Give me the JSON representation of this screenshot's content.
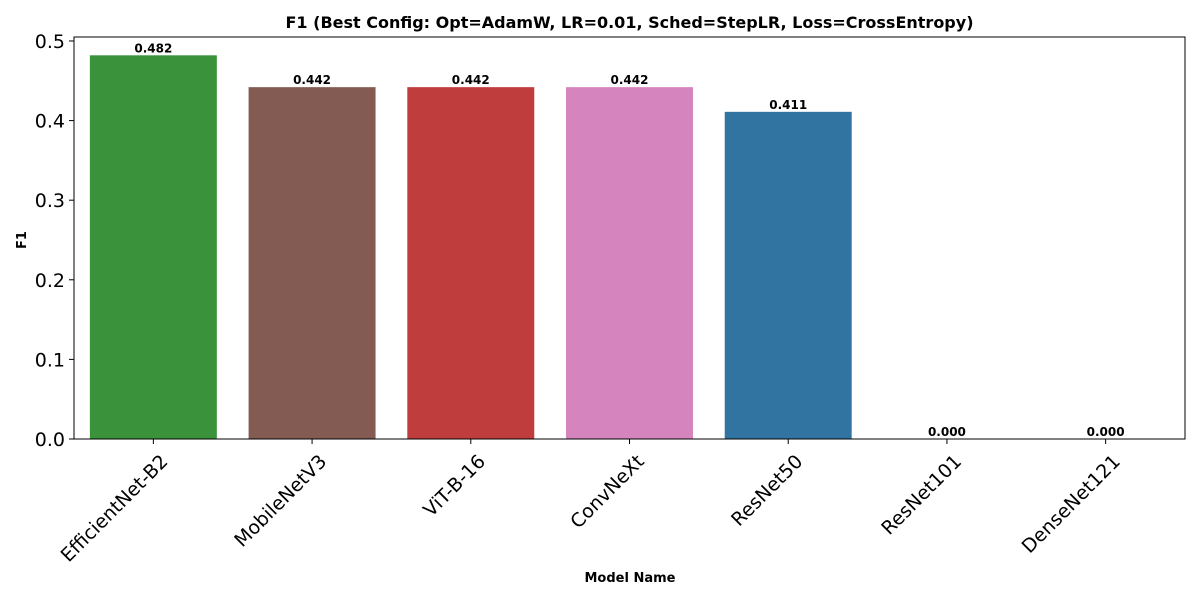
{
  "chart_data": {
    "type": "bar",
    "title": "F1 (Best Config: Opt=AdamW, LR=0.01, Sched=StepLR, Loss=CrossEntropy)",
    "xlabel": "Model Name",
    "ylabel": "F1",
    "categories": [
      "EfficientNet-B2",
      "MobileNetV3",
      "ViT-B-16",
      "ConvNeXt",
      "ResNet50",
      "ResNet101",
      "DenseNet121"
    ],
    "values": [
      0.482,
      0.442,
      0.442,
      0.442,
      0.411,
      0.0,
      0.0
    ],
    "value_labels": [
      "0.482",
      "0.442",
      "0.442",
      "0.442",
      "0.411",
      "0.000",
      "0.000"
    ],
    "colors": [
      "#3a923a",
      "#845b53",
      "#c03d3e",
      "#d684bd",
      "#3274a1",
      "#7f7f7f",
      "#8c8c8c"
    ],
    "ylim": [
      0,
      0.505
    ],
    "yticks": [
      0.0,
      0.1,
      0.2,
      0.3,
      0.4,
      0.5
    ],
    "ytick_labels": [
      "0.0",
      "0.1",
      "0.2",
      "0.3",
      "0.4",
      "0.5"
    ],
    "grid": false,
    "legend": "none"
  }
}
